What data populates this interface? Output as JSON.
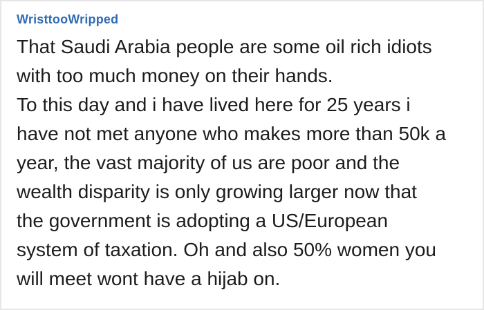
{
  "post": {
    "username": "WristtooWripped",
    "body": "That Saudi Arabia people are some oil rich idiots\nwith too much money on their hands.\nTo this day and i have lived here for 25 years i\nhave not met anyone who makes more than 50k a\nyear, the vast majority of us are poor and the\nwealth disparity is only growing larger now that\nthe government is adopting a US/European\nsystem of taxation. Oh and also 50% women you\nwill meet wont have a hijab on."
  },
  "colors": {
    "username_blue": "#2f6cb3",
    "body_text": "#1c1c1c",
    "card_border": "#e6e6e6",
    "card_background": "#ffffff"
  }
}
